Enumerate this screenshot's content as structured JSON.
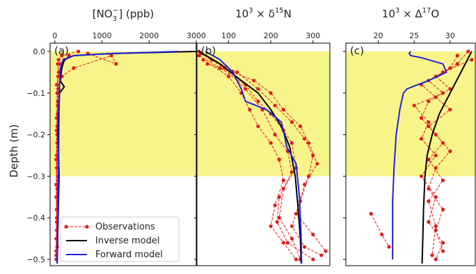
{
  "figure": {
    "ylabel": "Depth (m)"
  },
  "colors": {
    "highlight": "#f7f58a",
    "observations": "#e31a1c",
    "inverse": "#000000",
    "forward": "#1f1fe0"
  },
  "legend": {
    "placement": "bottom-left of panel (a)",
    "entries": [
      {
        "label": "Observations",
        "style": "red dashed with dots"
      },
      {
        "label": "Inverse model",
        "style": "black solid"
      },
      {
        "label": "Forward model",
        "style": "blue solid"
      }
    ]
  },
  "chart_data": [
    {
      "type": "line",
      "panel_letter": "(a)",
      "title_main": "[NO",
      "title_sub": "3",
      "title_sup": "−",
      "title_rest": "] (ppb)",
      "xlim": [
        -100,
        3000
      ],
      "ylim": [
        -0.515,
        0.02
      ],
      "xticks": [
        0,
        1000,
        2000,
        3000
      ],
      "xtick_labels": [
        "0",
        "1000",
        "2000",
        "3000"
      ],
      "yticks": [
        0.0,
        -0.1,
        -0.2,
        -0.3,
        -0.4,
        -0.5
      ],
      "ytick_labels": [
        "0.0",
        "−0.1",
        "−0.2",
        "−0.3",
        "−0.4",
        "−0.5"
      ],
      "highlight_depth": [
        0.0,
        -0.3
      ],
      "series": [
        {
          "role": "observations",
          "profiles": [
            [
              [
                500,
                0.0
              ],
              [
                150,
                -0.01
              ],
              [
                80,
                -0.02
              ],
              [
                60,
                -0.03
              ],
              [
                80,
                -0.05
              ],
              [
                50,
                -0.08
              ],
              [
                60,
                -0.12
              ],
              [
                50,
                -0.18
              ],
              [
                40,
                -0.25
              ],
              [
                30,
                -0.32
              ],
              [
                40,
                -0.4
              ],
              [
                30,
                -0.48
              ]
            ],
            [
              [
                700,
                -0.005
              ],
              [
                1300,
                -0.03
              ],
              [
                1200,
                -0.01
              ],
              [
                400,
                -0.04
              ],
              [
                150,
                -0.06
              ],
              [
                80,
                -0.09
              ],
              [
                60,
                -0.15
              ],
              [
                50,
                -0.22
              ],
              [
                60,
                -0.3
              ],
              [
                40,
                -0.38
              ],
              [
                30,
                -0.45
              ],
              [
                30,
                -0.5
              ]
            ],
            [
              [
                300,
                -0.01
              ],
              [
                100,
                -0.03
              ],
              [
                70,
                -0.06
              ],
              [
                50,
                -0.1
              ],
              [
                40,
                -0.16
              ],
              [
                50,
                -0.2
              ],
              [
                40,
                -0.28
              ],
              [
                30,
                -0.35
              ],
              [
                40,
                -0.43
              ],
              [
                30,
                -0.49
              ]
            ],
            [
              [
                200,
                -0.02
              ],
              [
                90,
                -0.05
              ],
              [
                40,
                -0.08
              ],
              [
                60,
                -0.13
              ],
              [
                40,
                -0.19
              ],
              [
                30,
                -0.26
              ],
              [
                50,
                -0.33
              ],
              [
                40,
                -0.41
              ],
              [
                50,
                -0.47
              ]
            ]
          ]
        },
        {
          "role": "inverse",
          "points": [
            [
              3000,
              0.0
            ],
            [
              1200,
              -0.005
            ],
            [
              400,
              -0.01
            ],
            [
              200,
              -0.02
            ],
            [
              150,
              -0.04
            ],
            [
              110,
              -0.07
            ],
            [
              200,
              -0.085
            ],
            [
              100,
              -0.1
            ],
            [
              80,
              -0.15
            ],
            [
              70,
              -0.2
            ],
            [
              90,
              -0.3
            ],
            [
              70,
              -0.4
            ],
            [
              50,
              -0.51
            ]
          ]
        },
        {
          "role": "forward",
          "points": [
            [
              2600,
              0.0
            ],
            [
              1200,
              -0.005
            ],
            [
              400,
              -0.01
            ],
            [
              180,
              -0.02
            ],
            [
              120,
              -0.04
            ],
            [
              100,
              -0.08
            ],
            [
              90,
              -0.15
            ],
            [
              80,
              -0.25
            ],
            [
              70,
              -0.35
            ],
            [
              60,
              -0.45
            ],
            [
              50,
              -0.51
            ]
          ]
        }
      ]
    },
    {
      "type": "line",
      "panel_letter": "(b)",
      "title_main": "10",
      "title_sup": "3",
      "title_rest": " × δ",
      "title_sup2": "15",
      "title_rest2": "N",
      "xlim": [
        25,
        340
      ],
      "ylim": [
        -0.515,
        0.02
      ],
      "xticks": [
        100,
        200,
        300
      ],
      "xtick_labels": [
        "100",
        "200",
        "300"
      ],
      "yticks": [
        0.0,
        -0.1,
        -0.2,
        -0.3,
        -0.4,
        -0.5
      ],
      "highlight_depth": [
        0.0,
        -0.3
      ],
      "series": [
        {
          "role": "observations",
          "profiles": [
            [
              [
                30,
                0.0
              ],
              [
                60,
                -0.02
              ],
              [
                120,
                -0.05
              ],
              [
                170,
                -0.09
              ],
              [
                210,
                -0.13
              ],
              [
                250,
                -0.17
              ],
              [
                280,
                -0.21
              ],
              [
                300,
                -0.25
              ],
              [
                290,
                -0.3
              ],
              [
                270,
                -0.36
              ],
              [
                250,
                -0.42
              ],
              [
                280,
                -0.47
              ],
              [
                320,
                -0.49
              ]
            ],
            [
              [
                30,
                -0.01
              ],
              [
                80,
                -0.04
              ],
              [
                140,
                -0.08
              ],
              [
                170,
                -0.12
              ],
              [
                200,
                -0.15
              ],
              [
                230,
                -0.19
              ],
              [
                250,
                -0.22
              ],
              [
                260,
                -0.28
              ],
              [
                230,
                -0.33
              ],
              [
                220,
                -0.4
              ],
              [
                250,
                -0.45
              ],
              [
                270,
                -0.5
              ]
            ],
            [
              [
                40,
                -0.02
              ],
              [
                100,
                -0.06
              ],
              [
                130,
                -0.1
              ],
              [
                150,
                -0.14
              ],
              [
                170,
                -0.18
              ],
              [
                200,
                -0.22
              ],
              [
                220,
                -0.26
              ],
              [
                230,
                -0.31
              ],
              [
                210,
                -0.37
              ],
              [
                200,
                -0.42
              ],
              [
                230,
                -0.46
              ],
              [
                260,
                -0.5
              ]
            ],
            [
              [
                50,
                -0.03
              ],
              [
                110,
                -0.05
              ],
              [
                160,
                -0.07
              ],
              [
                200,
                -0.1
              ],
              [
                230,
                -0.14
              ],
              [
                270,
                -0.18
              ],
              [
                290,
                -0.22
              ],
              [
                310,
                -0.27
              ],
              [
                280,
                -0.32
              ],
              [
                260,
                -0.39
              ],
              [
                300,
                -0.44
              ],
              [
                330,
                -0.48
              ]
            ],
            [
              [
                35,
                -0.005
              ],
              [
                90,
                -0.04
              ],
              [
                140,
                -0.09
              ],
              [
                180,
                -0.14
              ],
              [
                210,
                -0.2
              ],
              [
                240,
                -0.24
              ],
              [
                250,
                -0.29
              ],
              [
                220,
                -0.35
              ],
              [
                215,
                -0.41
              ],
              [
                240,
                -0.46
              ],
              [
                300,
                -0.5
              ]
            ]
          ]
        },
        {
          "role": "inverse",
          "points": [
            [
              30,
              0.0
            ],
            [
              80,
              -0.03
            ],
            [
              130,
              -0.07
            ],
            [
              170,
              -0.1
            ],
            [
              200,
              -0.14
            ],
            [
              225,
              -0.18
            ],
            [
              245,
              -0.23
            ],
            [
              258,
              -0.3
            ],
            [
              265,
              -0.38
            ],
            [
              270,
              -0.45
            ],
            [
              272,
              -0.51
            ]
          ]
        },
        {
          "role": "forward",
          "points": [
            [
              45,
              0.0
            ],
            [
              80,
              -0.02
            ],
            [
              110,
              -0.05
            ],
            [
              130,
              -0.09
            ],
            [
              140,
              -0.12
            ],
            [
              190,
              -0.14
            ],
            [
              225,
              -0.17
            ],
            [
              232,
              -0.2
            ],
            [
              238,
              -0.23
            ],
            [
              260,
              -0.27
            ],
            [
              268,
              -0.35
            ],
            [
              272,
              -0.45
            ],
            [
              273,
              -0.51
            ]
          ]
        }
      ]
    },
    {
      "type": "line",
      "panel_letter": "(c)",
      "title_main": "10",
      "title_sup": "3",
      "title_rest": " × Δ",
      "title_sup2": "17",
      "title_rest2": "O",
      "xlim": [
        15.5,
        33.5
      ],
      "ylim": [
        -0.515,
        0.02
      ],
      "xticks": [
        20,
        25,
        30
      ],
      "xtick_labels": [
        "20",
        "25",
        "30"
      ],
      "yticks": [
        0.0,
        -0.1,
        -0.2,
        -0.3,
        -0.4,
        -0.5
      ],
      "highlight_depth": [
        0.0,
        -0.3
      ],
      "series": [
        {
          "role": "observations",
          "profiles": [
            [
              [
                32.5,
                0.0
              ],
              [
                31,
                -0.03
              ],
              [
                28,
                -0.06
              ],
              [
                30,
                -0.09
              ],
              [
                27,
                -0.12
              ],
              [
                26,
                -0.16
              ],
              [
                28,
                -0.2
              ],
              [
                30,
                -0.24
              ],
              [
                28,
                -0.28
              ],
              [
                27,
                -0.33
              ],
              [
                29,
                -0.38
              ],
              [
                28,
                -0.43
              ],
              [
                29,
                -0.48
              ]
            ],
            [
              [
                31,
                -0.01
              ],
              [
                30,
                -0.04
              ],
              [
                27,
                -0.07
              ],
              [
                29,
                -0.1
              ],
              [
                25,
                -0.13
              ],
              [
                27,
                -0.17
              ],
              [
                26,
                -0.21
              ],
              [
                28,
                -0.25
              ],
              [
                26,
                -0.3
              ],
              [
                28,
                -0.35
              ],
              [
                27,
                -0.41
              ],
              [
                29,
                -0.46
              ],
              [
                28,
                -0.5
              ]
            ],
            [
              [
                33,
                -0.02
              ],
              [
                29,
                -0.05
              ],
              [
                26,
                -0.08
              ],
              [
                28,
                -0.11
              ],
              [
                30,
                -0.14
              ],
              [
                27,
                -0.18
              ],
              [
                29,
                -0.22
              ],
              [
                27,
                -0.26
              ],
              [
                29,
                -0.31
              ],
              [
                27,
                -0.36
              ],
              [
                28,
                -0.42
              ],
              [
                27.5,
                -0.49
              ]
            ],
            [
              [
                19,
                -0.39
              ],
              [
                20.5,
                -0.44
              ],
              [
                21.5,
                -0.47
              ]
            ]
          ]
        },
        {
          "role": "inverse",
          "points": [
            [
              33,
              0.0
            ],
            [
              31.5,
              -0.05
            ],
            [
              30,
              -0.1
            ],
            [
              28.5,
              -0.15
            ],
            [
              27.5,
              -0.2
            ],
            [
              26.8,
              -0.25
            ],
            [
              26.5,
              -0.3
            ],
            [
              26.3,
              -0.38
            ],
            [
              26.2,
              -0.45
            ],
            [
              26.1,
              -0.51
            ]
          ]
        },
        {
          "role": "forward",
          "points": [
            [
              24.5,
              0.0
            ],
            [
              24.3,
              -0.005
            ],
            [
              24.5,
              -0.01
            ],
            [
              26,
              -0.015
            ],
            [
              29,
              -0.03
            ],
            [
              29.5,
              -0.05
            ],
            [
              27,
              -0.07
            ],
            [
              24,
              -0.09
            ],
            [
              23.5,
              -0.1
            ],
            [
              23,
              -0.14
            ],
            [
              22.5,
              -0.2
            ],
            [
              22.2,
              -0.28
            ],
            [
              22,
              -0.36
            ],
            [
              22,
              -0.44
            ],
            [
              22,
              -0.5
            ]
          ]
        }
      ]
    }
  ]
}
